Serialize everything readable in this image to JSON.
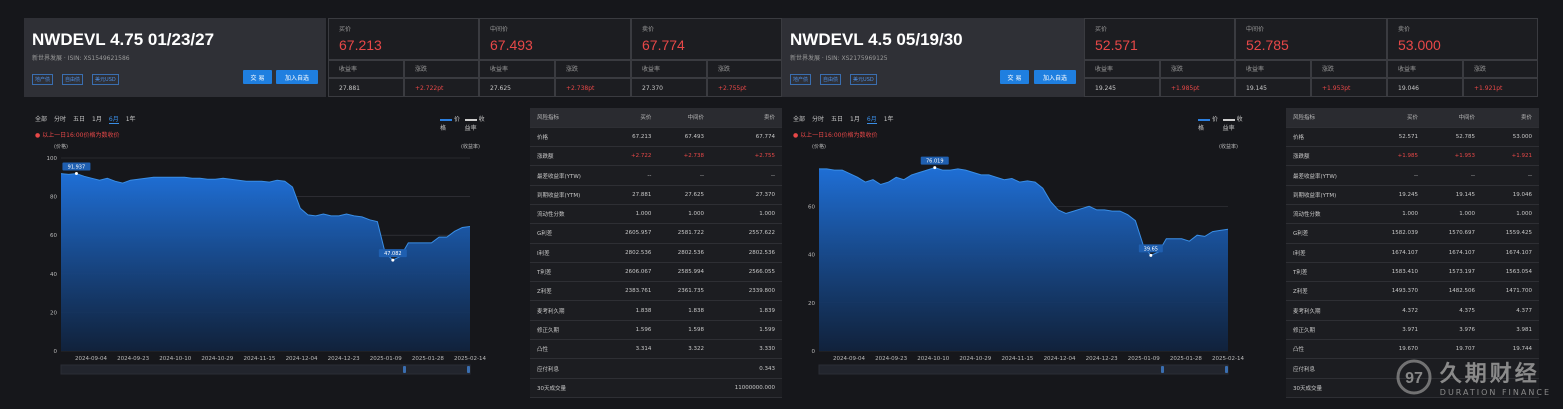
{
  "panels": [
    {
      "title": "NWDEVL 4.75 01/23/27",
      "subtitle": "新世界发展 · ISIN:  XS1549621586",
      "tags": [
        "地产债",
        "自由债",
        "美元USD"
      ],
      "buttons": {
        "trade": "交 易",
        "add": "加入自选"
      },
      "quote": {
        "bid_label": "买价",
        "bid": "67.213",
        "mid_label": "中间价",
        "mid": "67.493",
        "ask_label": "卖价",
        "ask": "67.774",
        "yield_label": "收益率",
        "change_label": "涨跌",
        "bid_yield": "27.881",
        "bid_change": "+2.722pt",
        "mid_yield": "27.625",
        "mid_change": "+2.738pt",
        "ask_yield": "27.370",
        "ask_change": "+2.755pt"
      },
      "chart_data": {
        "type": "area",
        "ranges": [
          "全部",
          "分时",
          "五日",
          "1月",
          "6月",
          "1年"
        ],
        "active_range": "6月",
        "legend": [
          "价格",
          "收益率"
        ],
        "notice": "以上一日16:00价格为数收价",
        "ylabel_left": "(价格)",
        "ylabel_right": "(收益率)",
        "yticks": [
          0,
          20,
          40,
          60,
          80,
          100
        ],
        "ylim": [
          0,
          100
        ],
        "xticks": [
          "2024-09-04",
          "2024-09-23",
          "2024-10-10",
          "2024-10-29",
          "2024-11-15",
          "2024-12-04",
          "2024-12-23",
          "2025-01-09",
          "2025-01-28",
          "2025-02-14"
        ],
        "series": [
          {
            "values": [
              91.9,
              91.5,
              91.937,
              90.5,
              89.5,
              88.5,
              89.5,
              88.0,
              87.0,
              88.5,
              89.0,
              89.5,
              90.0,
              90.0,
              90.0,
              90.0,
              90.0,
              89.5,
              89.5,
              89.0,
              89.0,
              89.5,
              89.0,
              88.5,
              88.0,
              88.0,
              88.0,
              87.5,
              88.5,
              88.0,
              85.0,
              74.0,
              70.5,
              70.0,
              71.0,
              70.0,
              70.0,
              71.0,
              70.0,
              69.5,
              68.0,
              67.0,
              51.0,
              47.082,
              49.0,
              56.0,
              56.0,
              56.0,
              56.0,
              59.0,
              59.0,
              62.0,
              64.0,
              64.5
            ]
          }
        ],
        "annotations": [
          {
            "label": "91.937",
            "index": 2,
            "value": 91.937
          },
          {
            "label": "47.082",
            "index": 43,
            "value": 47.082
          }
        ]
      },
      "table": {
        "headers": [
          "风险指标",
          "买价",
          "中间价",
          "卖价"
        ],
        "rows": [
          [
            "价格",
            "67.213",
            "67.493",
            "67.774"
          ],
          [
            "涨跌额",
            "+2.722",
            "+2.738",
            "+2.755"
          ],
          [
            "最差收益率(YTW)",
            "--",
            "--",
            "--"
          ],
          [
            "到期收益率(YTM)",
            "27.881",
            "27.625",
            "27.370"
          ],
          [
            "流动性分数",
            "1.000",
            "1.000",
            "1.000"
          ],
          [
            "G利差",
            "2605.957",
            "2581.722",
            "2557.622"
          ],
          [
            "I利差",
            "2802.536",
            "2802.536",
            "2802.536"
          ],
          [
            "T利差",
            "2606.067",
            "2585.994",
            "2566.055"
          ],
          [
            "Z利差",
            "2383.761",
            "2361.735",
            "2339.800"
          ],
          [
            "麦考利久期",
            "1.838",
            "1.838",
            "1.839"
          ],
          [
            "修正久期",
            "1.596",
            "1.598",
            "1.599"
          ],
          [
            "凸性",
            "3.314",
            "3.322",
            "3.330"
          ],
          [
            "应付利息",
            "",
            "",
            "0.343"
          ],
          [
            "30天成交量",
            "",
            "",
            "11000000.000"
          ]
        ]
      }
    },
    {
      "title": "NWDEVL 4.5 05/19/30",
      "subtitle": "新世界发展 · ISIN:  XS2175969125",
      "tags": [
        "地产债",
        "自由债",
        "美元USD"
      ],
      "buttons": {
        "trade": "交 易",
        "add": "加入自选"
      },
      "quote": {
        "bid_label": "买价",
        "bid": "52.571",
        "mid_label": "中间价",
        "mid": "52.785",
        "ask_label": "卖价",
        "ask": "53.000",
        "yield_label": "收益率",
        "change_label": "涨跌",
        "bid_yield": "19.245",
        "bid_change": "+1.985pt",
        "mid_yield": "19.145",
        "mid_change": "+1.953pt",
        "ask_yield": "19.046",
        "ask_change": "+1.921pt"
      },
      "chart_data": {
        "type": "area",
        "ranges": [
          "全部",
          "分时",
          "五日",
          "1月",
          "6月",
          "1年"
        ],
        "active_range": "6月",
        "legend": [
          "价格",
          "收益率"
        ],
        "notice": "以上一日16:00价格为数收价",
        "ylabel_left": "(价格)",
        "ylabel_right": "(收益率)",
        "yticks": [
          0,
          20,
          40,
          60
        ],
        "ylim": [
          0,
          80
        ],
        "xticks": [
          "2024-09-04",
          "2024-09-23",
          "2024-10-10",
          "2024-10-29",
          "2024-11-15",
          "2024-12-04",
          "2024-12-23",
          "2025-01-09",
          "2025-01-28",
          "2025-02-14"
        ],
        "series": [
          {
            "values": [
              75.5,
              75.5,
              75.0,
              75.0,
              73.5,
              72.0,
              70.0,
              71.0,
              69.0,
              70.0,
              72.0,
              71.0,
              73.0,
              74.0,
              75.0,
              76.019,
              75.0,
              75.0,
              75.5,
              75.0,
              74.0,
              73.0,
              73.0,
              72.0,
              71.0,
              71.5,
              70.0,
              70.5,
              70.0,
              67.5,
              62.0,
              58.5,
              57.0,
              58.0,
              59.0,
              60.0,
              58.5,
              58.5,
              58.0,
              58.0,
              56.5,
              54.0,
              44.0,
              39.65,
              41.0,
              46.5,
              46.5,
              46.5,
              45.5,
              48.0,
              47.5,
              49.5,
              50.0,
              50.5
            ]
          }
        ],
        "annotations": [
          {
            "label": "76.019",
            "index": 15,
            "value": 76.019
          },
          {
            "label": "39.65",
            "index": 43,
            "value": 39.65
          }
        ]
      },
      "table": {
        "headers": [
          "风险指标",
          "买价",
          "中间价",
          "卖价"
        ],
        "rows": [
          [
            "价格",
            "52.571",
            "52.785",
            "53.000"
          ],
          [
            "涨跌额",
            "+1.985",
            "+1.953",
            "+1.921"
          ],
          [
            "最差收益率(YTW)",
            "--",
            "--",
            "--"
          ],
          [
            "到期收益率(YTM)",
            "19.245",
            "19.145",
            "19.046"
          ],
          [
            "流动性分数",
            "1.000",
            "1.000",
            "1.000"
          ],
          [
            "G利差",
            "1582.039",
            "1570.697",
            "1559.425"
          ],
          [
            "I利差",
            "1674.107",
            "1674.107",
            "1674.107"
          ],
          [
            "T利差",
            "1583.410",
            "1573.197",
            "1563.054"
          ],
          [
            "Z利差",
            "1493.370",
            "1482.506",
            "1471.700"
          ],
          [
            "麦考利久期",
            "4.372",
            "4.375",
            "4.377"
          ],
          [
            "修正久期",
            "3.971",
            "3.976",
            "3.981"
          ],
          [
            "凸性",
            "19.670",
            "19.707",
            "19.744"
          ],
          [
            "应付利息",
            "",
            "",
            ""
          ],
          [
            "30天成交量",
            "",
            "",
            ""
          ]
        ]
      }
    }
  ],
  "watermark": {
    "cn": "久期财经",
    "en": "DURATION FINANCE"
  },
  "colors": {
    "accent": "#1f7fe0",
    "up": "#e84848",
    "bg": "#16171b",
    "panel": "#2f3036"
  }
}
